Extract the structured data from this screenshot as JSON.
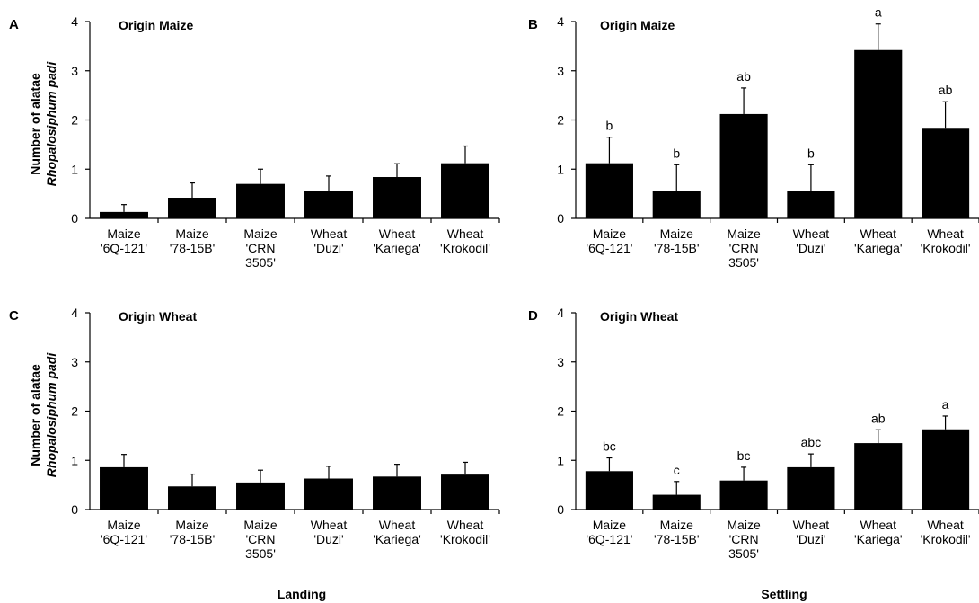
{
  "ylabel_line1": "Number of alatae",
  "ylabel_line2": "Rhopalosiphum padi",
  "bottom_labels": [
    "Landing",
    "Settling"
  ],
  "chart_data": [
    {
      "type": "bar",
      "panel": "A",
      "title": "Origin Maize",
      "categories": [
        [
          "Maize",
          "'6Q-121'"
        ],
        [
          "Maize",
          "'78-15B'"
        ],
        [
          "Maize",
          "'CRN",
          "3505'"
        ],
        [
          "Wheat",
          "'Duzi'"
        ],
        [
          "Wheat",
          "'Kariega'"
        ],
        [
          "Wheat",
          "'Krokodil'"
        ]
      ],
      "values": [
        0.13,
        0.42,
        0.7,
        0.56,
        0.84,
        1.12
      ],
      "errors": [
        0.15,
        0.3,
        0.3,
        0.3,
        0.27,
        0.35
      ],
      "letters": [],
      "ylim": [
        0,
        4
      ],
      "yticks": [
        0,
        1,
        2,
        3,
        4
      ]
    },
    {
      "type": "bar",
      "panel": "B",
      "title": "Origin Maize",
      "categories": [
        [
          "Maize",
          "'6Q-121'"
        ],
        [
          "Maize",
          "'78-15B'"
        ],
        [
          "Maize",
          "'CRN",
          "3505'"
        ],
        [
          "Wheat",
          "'Duzi'"
        ],
        [
          "Wheat",
          "'Kariega'"
        ],
        [
          "Wheat",
          "'Krokodil'"
        ]
      ],
      "values": [
        1.12,
        0.56,
        2.12,
        0.56,
        3.42,
        1.84
      ],
      "errors": [
        0.53,
        0.53,
        0.53,
        0.53,
        0.53,
        0.53
      ],
      "letters": [
        "b",
        "b",
        "ab",
        "b",
        "a",
        "ab"
      ],
      "ylim": [
        0,
        4
      ],
      "yticks": [
        0,
        1,
        2,
        3,
        4
      ]
    },
    {
      "type": "bar",
      "panel": "C",
      "title": "Origin Wheat",
      "categories": [
        [
          "Maize",
          "'6Q-121'"
        ],
        [
          "Maize",
          "'78-15B'"
        ],
        [
          "Maize",
          "'CRN",
          "3505'"
        ],
        [
          "Wheat",
          "'Duzi'"
        ],
        [
          "Wheat",
          "'Kariega'"
        ],
        [
          "Wheat",
          "'Krokodil'"
        ]
      ],
      "values": [
        0.86,
        0.47,
        0.55,
        0.63,
        0.67,
        0.71
      ],
      "errors": [
        0.26,
        0.25,
        0.25,
        0.25,
        0.25,
        0.25
      ],
      "letters": [],
      "ylim": [
        0,
        4
      ],
      "yticks": [
        0,
        1,
        2,
        3,
        4
      ]
    },
    {
      "type": "bar",
      "panel": "D",
      "title": "Origin Wheat",
      "categories": [
        [
          "Maize",
          "'6Q-121'"
        ],
        [
          "Maize",
          "'78-15B'"
        ],
        [
          "Maize",
          "'CRN",
          "3505'"
        ],
        [
          "Wheat",
          "'Duzi'"
        ],
        [
          "Wheat",
          "'Kariega'"
        ],
        [
          "Wheat",
          "'Krokodil'"
        ]
      ],
      "values": [
        0.78,
        0.3,
        0.59,
        0.86,
        1.35,
        1.63
      ],
      "errors": [
        0.27,
        0.27,
        0.27,
        0.27,
        0.27,
        0.27
      ],
      "letters": [
        "bc",
        "c",
        "bc",
        "abc",
        "ab",
        "a"
      ],
      "ylim": [
        0,
        4
      ],
      "yticks": [
        0,
        1,
        2,
        3,
        4
      ]
    }
  ]
}
